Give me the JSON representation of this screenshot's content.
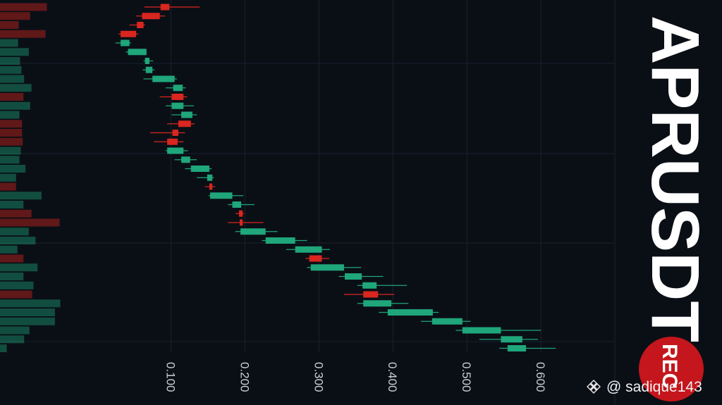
{
  "chart_data": {
    "type": "candlestick",
    "title": "APRUSDT",
    "xlim": [
      -0.131,
      0.7
    ],
    "xticks": [
      {
        "value": 0.1,
        "label": "0.100"
      },
      {
        "value": 0.2,
        "label": "0.200"
      },
      {
        "value": 0.3,
        "label": "0.300"
      },
      {
        "value": 0.4,
        "label": "0.400"
      },
      {
        "value": 0.5,
        "label": "0.500"
      },
      {
        "value": 0.6,
        "label": "0.600"
      }
    ],
    "grid": true,
    "up_color": "#1fa67a",
    "down_color": "#d9261f",
    "open": [
      0.098,
      0.085,
      0.063,
      0.053,
      0.032,
      0.042,
      0.065,
      0.066,
      0.075,
      0.103,
      0.117,
      0.101,
      0.114,
      0.127,
      0.11,
      0.109,
      0.095,
      0.114,
      0.127,
      0.149,
      0.156,
      0.153,
      0.183,
      0.197,
      0.197,
      0.194,
      0.228,
      0.268,
      0.304,
      0.289,
      0.335,
      0.359,
      0.38,
      0.36,
      0.393,
      0.453,
      0.494,
      0.546,
      0.555
    ],
    "high": [
      0.139,
      0.092,
      0.065,
      0.056,
      0.046,
      0.067,
      0.076,
      0.078,
      0.108,
      0.12,
      0.122,
      0.131,
      0.135,
      0.132,
      0.119,
      0.117,
      0.123,
      0.135,
      0.155,
      0.158,
      0.16,
      0.198,
      0.213,
      0.199,
      0.225,
      0.244,
      0.284,
      0.315,
      0.314,
      0.357,
      0.387,
      0.419,
      0.402,
      0.421,
      0.462,
      0.505,
      0.6,
      0.596,
      0.62
    ],
    "low": [
      0.064,
      0.053,
      0.044,
      0.029,
      0.025,
      0.039,
      0.063,
      0.062,
      0.063,
      0.093,
      0.085,
      0.093,
      0.101,
      0.095,
      0.072,
      0.077,
      0.093,
      0.105,
      0.119,
      0.135,
      0.146,
      0.151,
      0.177,
      0.187,
      0.177,
      0.187,
      0.223,
      0.256,
      0.282,
      0.284,
      0.327,
      0.352,
      0.334,
      0.352,
      0.381,
      0.438,
      0.485,
      0.517,
      0.544
    ],
    "close": [
      0.086,
      0.061,
      0.054,
      0.032,
      0.044,
      0.067,
      0.071,
      0.075,
      0.105,
      0.116,
      0.101,
      0.117,
      0.129,
      0.11,
      0.102,
      0.095,
      0.117,
      0.126,
      0.152,
      0.156,
      0.152,
      0.183,
      0.195,
      0.192,
      0.193,
      0.228,
      0.268,
      0.304,
      0.287,
      0.334,
      0.358,
      0.378,
      0.36,
      0.398,
      0.454,
      0.494,
      0.546,
      0.575,
      0.58
    ],
    "volume": [
      70,
      45,
      28,
      68,
      27,
      43,
      30,
      32,
      36,
      47,
      35,
      45,
      29,
      33,
      33,
      34,
      31,
      29,
      38,
      24,
      24,
      62,
      35,
      47,
      89,
      43,
      53,
      26,
      35,
      56,
      35,
      50,
      48,
      90,
      82,
      82,
      44,
      36,
      10
    ]
  },
  "watermark": "@ sadique143",
  "record_badge": "REC"
}
